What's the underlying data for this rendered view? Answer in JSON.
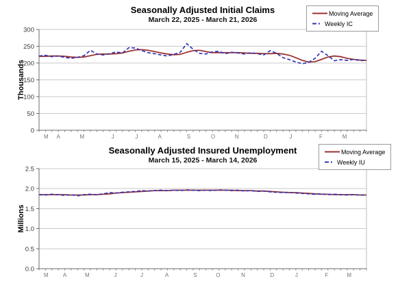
{
  "colors": {
    "moving_average": "#993333",
    "weekly": "#3333b3",
    "gridline": "#c9c9c9",
    "plot_border": "#bdbdbd",
    "axis": "#6b6b6b",
    "tick_label": "#3a3a3a",
    "month_label": "#757575",
    "legend_border": "#9a9a9a",
    "background": "#ffffff"
  },
  "chart_data": [
    {
      "type": "line",
      "title": "Seasonally Adjusted Initial Claims",
      "subtitle": "March 22, 2025 - March 21, 2026",
      "ylabel": "Thousands",
      "xlabel": "",
      "ylim": [
        0,
        300
      ],
      "y_tick_values": [
        0,
        50,
        100,
        150,
        200,
        250,
        300
      ],
      "y_tick_labels": [
        "0",
        "50",
        "100",
        "150",
        "200",
        "250",
        "300"
      ],
      "x_tick_labels": [
        "M",
        "A",
        "M",
        "J",
        "J",
        "A",
        "S",
        "O",
        "N",
        "D",
        "J",
        "F",
        "M"
      ],
      "x_tick_week_positions": [
        1.1,
        3.0,
        6.7,
        11.5,
        15.2,
        18.8,
        23.3,
        27.1,
        30.8,
        35.3,
        39.2,
        43.9,
        47.6
      ],
      "weeks": 52,
      "grid": "horizontal",
      "legend_position": "top-right",
      "series": [
        {
          "name": "Moving Average",
          "style": "solid",
          "color": "#993333",
          "values": [
            220,
            220,
            221,
            221,
            220,
            218,
            217,
            218,
            222,
            226,
            227,
            227,
            228,
            230,
            235,
            239,
            240,
            238,
            234,
            230,
            227,
            225,
            226,
            232,
            237,
            238,
            234,
            231,
            231,
            231,
            231,
            231,
            230,
            229,
            229,
            228,
            228,
            229,
            227,
            223,
            216,
            208,
            203,
            204,
            211,
            218,
            221,
            219,
            214,
            211,
            209,
            208
          ]
        },
        {
          "name": "Weekly IC",
          "style": "dashed",
          "color": "#3333b3",
          "values": [
            221,
            223,
            219,
            221,
            217,
            214,
            217,
            222,
            238,
            227,
            224,
            228,
            233,
            230,
            246,
            245,
            237,
            231,
            228,
            224,
            221,
            226,
            232,
            258,
            241,
            229,
            227,
            233,
            235,
            228,
            232,
            230,
            227,
            231,
            228,
            224,
            237,
            229,
            216,
            210,
            203,
            198,
            202,
            214,
            235,
            222,
            207,
            210,
            208,
            211,
            207,
            209
          ]
        }
      ]
    },
    {
      "type": "line",
      "title": "Seasonally Adjusted Insured Unemployment",
      "subtitle": "March 15, 2025 - March 14, 2026",
      "ylabel": "Millions",
      "xlabel": "",
      "ylim": [
        0,
        2.5
      ],
      "y_tick_values": [
        0,
        0.5,
        1.0,
        1.5,
        2.0,
        2.5
      ],
      "y_tick_labels": [
        "0.0",
        "0.5",
        "1.0",
        "1.5",
        "2.0",
        "2.5"
      ],
      "x_tick_labels": [
        "M",
        "A",
        "M",
        "J",
        "J",
        "A",
        "S",
        "O",
        "N",
        "D",
        "J",
        "F",
        "M"
      ],
      "x_tick_week_positions": [
        1.1,
        4.0,
        7.5,
        11.9,
        16.0,
        19.9,
        24.3,
        27.9,
        31.8,
        36.3,
        40.1,
        44.8,
        48.3
      ],
      "weeks": 52,
      "grid": "horizontal",
      "legend_position": "top-right",
      "series": [
        {
          "name": "Moving Average",
          "style": "solid",
          "color": "#993333",
          "values": [
            1.85,
            1.85,
            1.85,
            1.85,
            1.85,
            1.84,
            1.84,
            1.84,
            1.85,
            1.85,
            1.86,
            1.87,
            1.89,
            1.9,
            1.91,
            1.92,
            1.93,
            1.94,
            1.95,
            1.95,
            1.95,
            1.96,
            1.96,
            1.96,
            1.96,
            1.96,
            1.96,
            1.96,
            1.96,
            1.96,
            1.96,
            1.95,
            1.95,
            1.95,
            1.94,
            1.94,
            1.93,
            1.92,
            1.91,
            1.9,
            1.9,
            1.89,
            1.88,
            1.87,
            1.86,
            1.86,
            1.85,
            1.85,
            1.85,
            1.85,
            1.84,
            1.84
          ]
        },
        {
          "name": "Weekly IU",
          "style": "dashed",
          "color": "#3333b3",
          "values": [
            1.85,
            1.84,
            1.86,
            1.85,
            1.83,
            1.85,
            1.82,
            1.85,
            1.86,
            1.85,
            1.87,
            1.9,
            1.89,
            1.91,
            1.92,
            1.93,
            1.95,
            1.94,
            1.95,
            1.96,
            1.95,
            1.96,
            1.95,
            1.97,
            1.96,
            1.95,
            1.96,
            1.95,
            1.97,
            1.96,
            1.95,
            1.96,
            1.94,
            1.95,
            1.93,
            1.94,
            1.92,
            1.91,
            1.9,
            1.91,
            1.89,
            1.88,
            1.87,
            1.86,
            1.87,
            1.85,
            1.86,
            1.85,
            1.84,
            1.85,
            1.84,
            1.84
          ]
        }
      ]
    }
  ]
}
